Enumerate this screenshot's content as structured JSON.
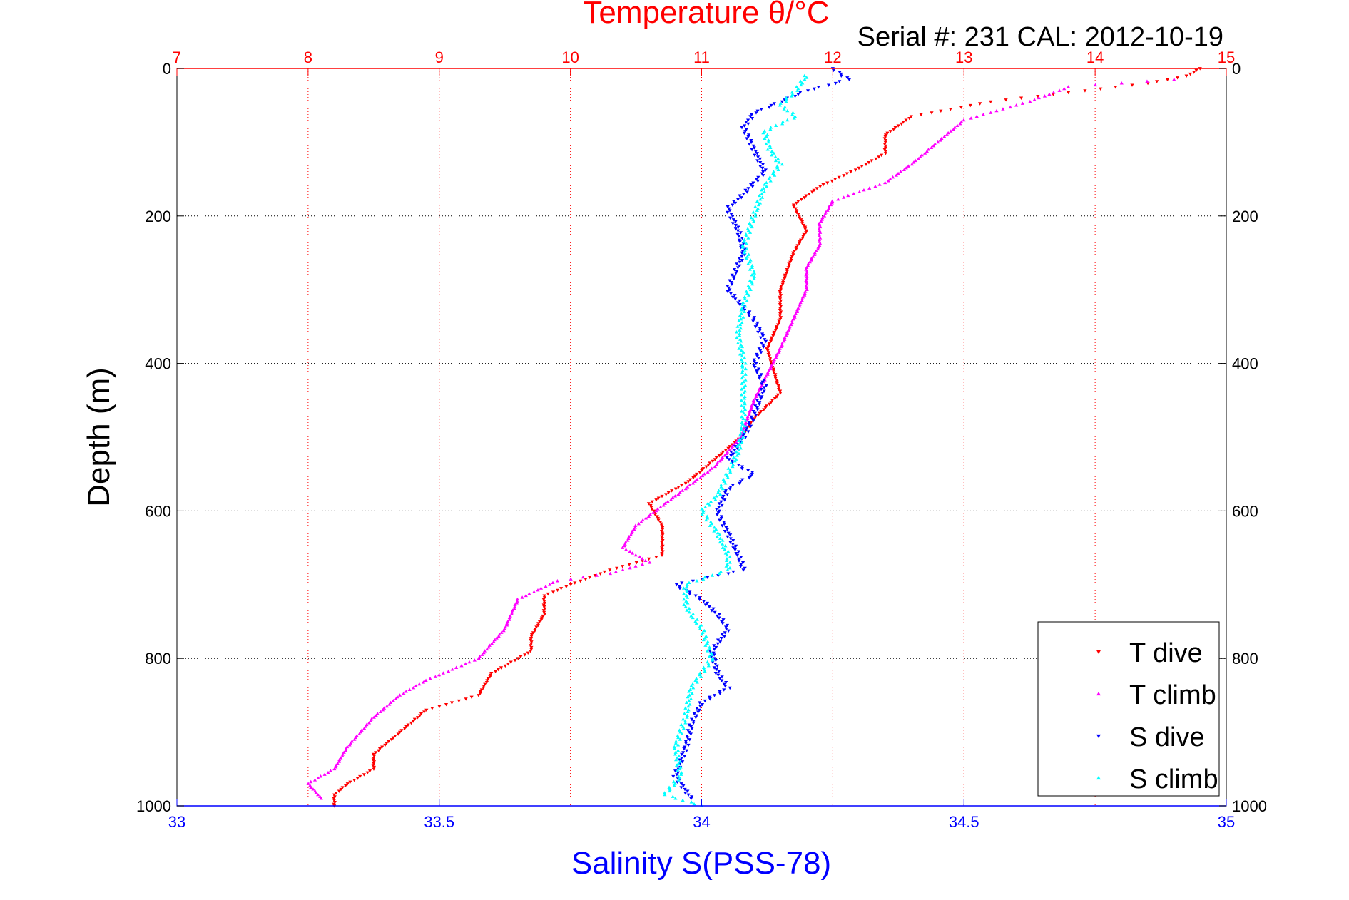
{
  "chart_data": {
    "type": "scatter",
    "title": "Temperature θ/°C",
    "subtitle": "Serial #: 231  CAL: 2012-10-19",
    "ylabel": "Depth (m)",
    "xlabel": "Salinity S(PSS-78)",
    "ylim": [
      0,
      1000
    ],
    "y_reversed": true,
    "x_top": {
      "label": "Temperature θ/°C",
      "lim": [
        7,
        15
      ],
      "ticks": [
        7,
        8,
        9,
        10,
        11,
        12,
        13,
        14,
        15
      ],
      "color": "#ff0000"
    },
    "x_bottom": {
      "label": "Salinity S(PSS-78)",
      "lim": [
        33,
        35
      ],
      "ticks": [
        33,
        33.5,
        34,
        34.5,
        35
      ],
      "tick_labels": [
        "33",
        "33.5",
        "34",
        "34.5",
        "35"
      ],
      "color": "#0000ff"
    },
    "y_ticks": [
      0,
      200,
      400,
      600,
      800,
      1000
    ],
    "grid": true,
    "legend_position": "bottom-right",
    "series": [
      {
        "name": "T dive",
        "axis": "top",
        "color": "#ff0000",
        "marker": "triangle-down",
        "points": [
          [
            14.8,
            0
          ],
          [
            14.7,
            10
          ],
          [
            14.4,
            20
          ],
          [
            13.2,
            45
          ],
          [
            12.6,
            65
          ],
          [
            12.4,
            90
          ],
          [
            12.4,
            115
          ],
          [
            12.2,
            135
          ],
          [
            11.9,
            160
          ],
          [
            11.7,
            185
          ],
          [
            11.8,
            220
          ],
          [
            11.7,
            250
          ],
          [
            11.6,
            300
          ],
          [
            11.6,
            340
          ],
          [
            11.5,
            380
          ],
          [
            11.6,
            440
          ],
          [
            11.4,
            475
          ],
          [
            11.3,
            500
          ],
          [
            11.1,
            530
          ],
          [
            10.9,
            560
          ],
          [
            10.6,
            590
          ],
          [
            10.7,
            620
          ],
          [
            10.7,
            660
          ],
          [
            10.3,
            680
          ],
          [
            10.0,
            700
          ],
          [
            9.8,
            715
          ],
          [
            9.8,
            740
          ],
          [
            9.7,
            770
          ],
          [
            9.7,
            790
          ],
          [
            9.4,
            820
          ],
          [
            9.3,
            850
          ],
          [
            8.9,
            870
          ],
          [
            8.7,
            900
          ],
          [
            8.5,
            930
          ],
          [
            8.5,
            950
          ],
          [
            8.3,
            970
          ],
          [
            8.2,
            985
          ],
          [
            8.2,
            1000
          ]
        ]
      },
      {
        "name": "T climb",
        "axis": "top",
        "color": "#ff00ff",
        "marker": "triangle-up",
        "points": [
          [
            14.6,
            15
          ],
          [
            13.8,
            25
          ],
          [
            13.5,
            45
          ],
          [
            13.0,
            70
          ],
          [
            12.8,
            100
          ],
          [
            12.6,
            130
          ],
          [
            12.4,
            155
          ],
          [
            12.0,
            180
          ],
          [
            11.9,
            210
          ],
          [
            11.9,
            240
          ],
          [
            11.8,
            270
          ],
          [
            11.8,
            300
          ],
          [
            11.7,
            340
          ],
          [
            11.6,
            380
          ],
          [
            11.4,
            450
          ],
          [
            11.3,
            500
          ],
          [
            11.1,
            540
          ],
          [
            10.8,
            580
          ],
          [
            10.5,
            620
          ],
          [
            10.4,
            650
          ],
          [
            10.6,
            670
          ],
          [
            10.3,
            685
          ],
          [
            9.9,
            695
          ],
          [
            9.6,
            720
          ],
          [
            9.5,
            760
          ],
          [
            9.3,
            800
          ],
          [
            8.9,
            830
          ],
          [
            8.7,
            850
          ],
          [
            8.5,
            880
          ],
          [
            8.3,
            920
          ],
          [
            8.2,
            950
          ],
          [
            8.0,
            970
          ],
          [
            8.1,
            990
          ]
        ]
      },
      {
        "name": "S dive",
        "axis": "bottom",
        "color": "#0000ff",
        "marker": "triangle-down",
        "points": [
          [
            34.25,
            0
          ],
          [
            34.28,
            15
          ],
          [
            34.2,
            30
          ],
          [
            34.15,
            45
          ],
          [
            34.1,
            60
          ],
          [
            34.08,
            80
          ],
          [
            34.1,
            110
          ],
          [
            34.12,
            140
          ],
          [
            34.08,
            170
          ],
          [
            34.05,
            190
          ],
          [
            34.07,
            220
          ],
          [
            34.08,
            250
          ],
          [
            34.05,
            300
          ],
          [
            34.1,
            340
          ],
          [
            34.12,
            370
          ],
          [
            34.1,
            400
          ],
          [
            34.12,
            430
          ],
          [
            34.1,
            470
          ],
          [
            34.08,
            500
          ],
          [
            34.05,
            530
          ],
          [
            34.1,
            550
          ],
          [
            34.05,
            570
          ],
          [
            34.03,
            600
          ],
          [
            34.05,
            630
          ],
          [
            34.07,
            660
          ],
          [
            34.08,
            680
          ],
          [
            33.95,
            700
          ],
          [
            34.0,
            720
          ],
          [
            34.03,
            740
          ],
          [
            34.05,
            760
          ],
          [
            34.02,
            790
          ],
          [
            34.03,
            820
          ],
          [
            34.05,
            840
          ],
          [
            34.0,
            860
          ],
          [
            33.98,
            890
          ],
          [
            33.97,
            920
          ],
          [
            33.95,
            960
          ],
          [
            33.98,
            990
          ]
        ]
      },
      {
        "name": "S climb",
        "axis": "bottom",
        "color": "#00ffff",
        "marker": "triangle-up",
        "points": [
          [
            34.2,
            10
          ],
          [
            34.18,
            30
          ],
          [
            34.15,
            50
          ],
          [
            34.18,
            65
          ],
          [
            34.12,
            85
          ],
          [
            34.13,
            110
          ],
          [
            34.15,
            130
          ],
          [
            34.12,
            160
          ],
          [
            34.1,
            200
          ],
          [
            34.08,
            240
          ],
          [
            34.1,
            280
          ],
          [
            34.08,
            320
          ],
          [
            34.07,
            360
          ],
          [
            34.08,
            400
          ],
          [
            34.08,
            440
          ],
          [
            34.08,
            480
          ],
          [
            34.07,
            520
          ],
          [
            34.05,
            550
          ],
          [
            34.03,
            580
          ],
          [
            34.0,
            600
          ],
          [
            34.03,
            630
          ],
          [
            34.05,
            660
          ],
          [
            34.05,
            680
          ],
          [
            33.97,
            700
          ],
          [
            33.97,
            730
          ],
          [
            34.0,
            760
          ],
          [
            34.02,
            800
          ],
          [
            33.98,
            840
          ],
          [
            33.97,
            880
          ],
          [
            33.95,
            920
          ],
          [
            33.96,
            960
          ],
          [
            33.93,
            985
          ],
          [
            34.0,
            1000
          ]
        ]
      }
    ]
  }
}
